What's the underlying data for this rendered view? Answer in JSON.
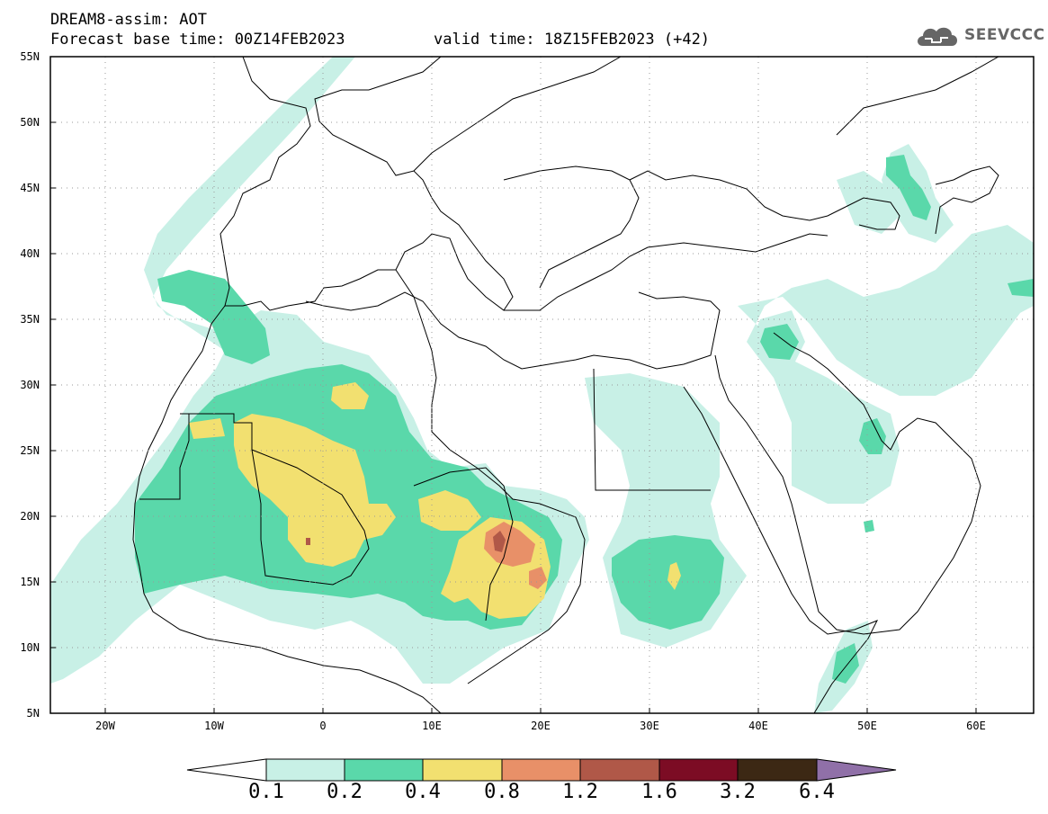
{
  "header": {
    "line1": "DREAM8-assim: AOT",
    "line2": "Forecast base time: 00Z14FEB2023",
    "valid": "valid time: 18Z15FEB2023 (+42)"
  },
  "logo": {
    "icon": "cloud-icon",
    "text": "SEEVCCC"
  },
  "map": {
    "lat_labels": [
      "55N",
      "50N",
      "45N",
      "40N",
      "35N",
      "30N",
      "25N",
      "20N",
      "15N",
      "10N",
      "5N"
    ],
    "lon_labels": [
      "20W",
      "10W",
      "0",
      "10E",
      "20E",
      "30E",
      "40E",
      "50E",
      "60E"
    ],
    "lat_range": [
      5,
      55
    ],
    "lon_range": [
      -25,
      65
    ],
    "grid": true
  },
  "colorbar": {
    "labels": [
      "0.1",
      "0.2",
      "0.4",
      "0.8",
      "1.2",
      "1.6",
      "3.2",
      "6.4"
    ],
    "colors": {
      "lt01": "#ffffff",
      "c1": "#c8f0e6",
      "c2": "#5ad8aa",
      "c3": "#f2e070",
      "c4": "#e89068",
      "c5": "#b05848",
      "c6": "#7c0c24",
      "c7": "#3c2814",
      "gt64": "#9070a8"
    }
  }
}
